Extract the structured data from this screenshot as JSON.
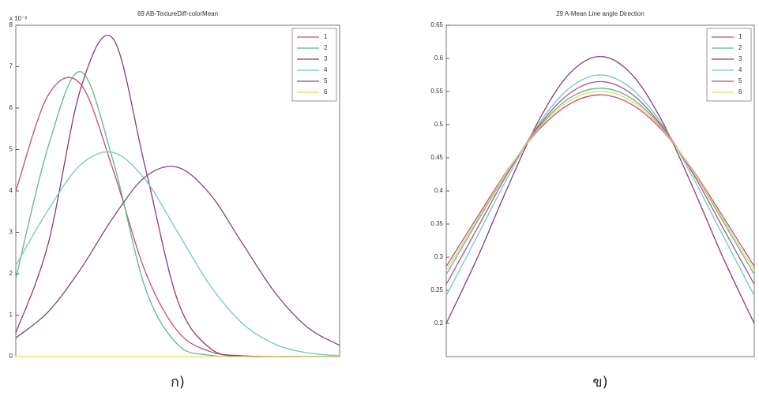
{
  "chart_data": [
    {
      "type": "line",
      "title": "69 AB-TextureDiff-colorMean",
      "y_multiplier": "x 10⁻³",
      "caption": "ก)",
      "x": [
        0,
        1,
        2,
        3,
        4,
        5,
        6,
        7,
        8,
        9,
        10
      ],
      "xlim": [
        0,
        10
      ],
      "ylim": [
        0,
        8
      ],
      "yticks": [
        0,
        1,
        2,
        3,
        4,
        5,
        6,
        7,
        8
      ],
      "legend": "upper right",
      "series": [
        {
          "name": "1",
          "color": "#c24f79",
          "values": [
            3.99,
            6.31,
            6.58,
            4.52,
            2.05,
            0.61,
            0.12,
            0.02,
            0,
            0,
            0
          ]
        },
        {
          "name": "2",
          "color": "#5fb88a",
          "values": [
            1.88,
            5.07,
            6.88,
            4.74,
            1.65,
            0.29,
            0.03,
            0,
            0,
            0,
            0
          ]
        },
        {
          "name": "3",
          "color": "#8c3c78",
          "values": [
            0.57,
            2.72,
            6.46,
            7.68,
            4.56,
            1.35,
            0.2,
            0.01,
            0,
            0,
            0
          ]
        },
        {
          "name": "4",
          "color": "#72c8c4",
          "values": [
            2.2,
            3.54,
            4.63,
            4.93,
            4.27,
            3.0,
            1.72,
            0.8,
            0.3,
            0.09,
            0.02
          ]
        },
        {
          "name": "5",
          "color": "#7a4a78",
          "values": [
            0.45,
            1.08,
            2.11,
            3.35,
            4.34,
            4.57,
            3.92,
            2.73,
            1.55,
            0.71,
            0.27
          ]
        },
        {
          "name": "6",
          "color": "#e4dc6a",
          "values": [
            0,
            0,
            0,
            0,
            0,
            0,
            0,
            0,
            0,
            0,
            0
          ]
        }
      ]
    },
    {
      "type": "line",
      "title": "29 A-Mean Line angle Direction",
      "caption": "ข)",
      "x": [
        0,
        1,
        2,
        3,
        4,
        5,
        6,
        7,
        8,
        9,
        10
      ],
      "xlim": [
        0,
        10
      ],
      "ylim": [
        0.15,
        0.65
      ],
      "yticks": [
        0.2,
        0.25,
        0.3,
        0.35,
        0.4,
        0.45,
        0.5,
        0.55,
        0.6,
        0.65
      ],
      "legend": "upper right",
      "series": [
        {
          "name": "1",
          "color": "#c24f79",
          "values": [
            0.286,
            0.36,
            0.432,
            0.492,
            0.531,
            0.545,
            0.531,
            0.492,
            0.432,
            0.36,
            0.286
          ]
        },
        {
          "name": "2",
          "color": "#5fb88a",
          "values": [
            0.274,
            0.353,
            0.43,
            0.496,
            0.54,
            0.555,
            0.54,
            0.496,
            0.43,
            0.353,
            0.274
          ]
        },
        {
          "name": "3",
          "color": "#8c3c78",
          "values": [
            0.2,
            0.298,
            0.406,
            0.506,
            0.577,
            0.603,
            0.577,
            0.506,
            0.406,
            0.298,
            0.2
          ]
        },
        {
          "name": "4",
          "color": "#72c8c4",
          "values": [
            0.242,
            0.331,
            0.421,
            0.501,
            0.555,
            0.575,
            0.555,
            0.501,
            0.421,
            0.331,
            0.242
          ]
        },
        {
          "name": "5",
          "color": "#b0508f",
          "values": [
            0.259,
            0.343,
            0.427,
            0.498,
            0.547,
            0.565,
            0.547,
            0.498,
            0.427,
            0.343,
            0.259
          ]
        },
        {
          "name": "6",
          "color": "#e4dc6a",
          "values": [
            0.28,
            0.356,
            0.431,
            0.494,
            0.536,
            0.55,
            0.536,
            0.494,
            0.431,
            0.356,
            0.28
          ]
        }
      ]
    }
  ]
}
